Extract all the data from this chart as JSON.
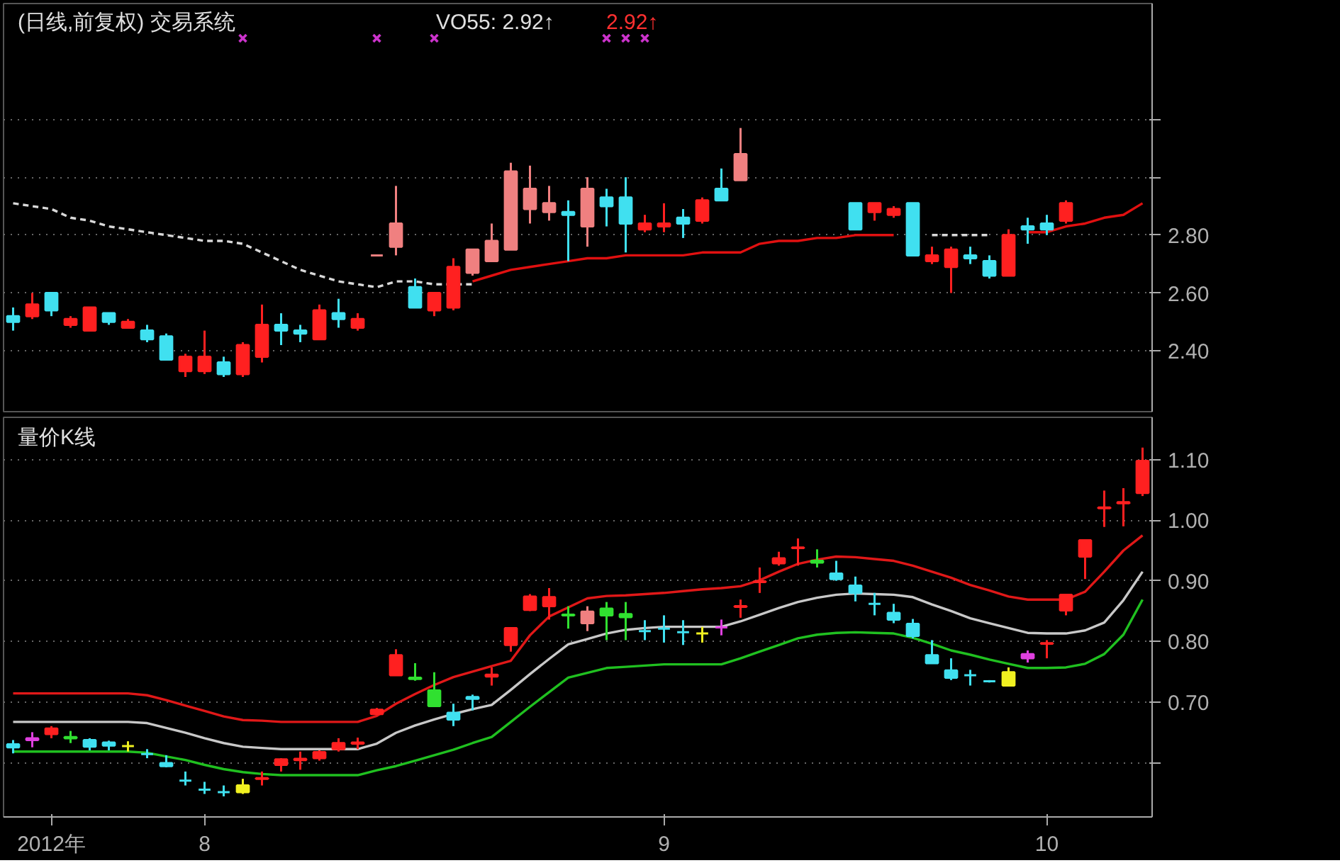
{
  "chart_data": [
    {
      "type": "candlestick",
      "title": "(日线,前复权) 交易系统",
      "annotations": [
        "VO55: 2.92↑",
        "2.92↑"
      ],
      "categories": [
        null,
        null,
        null,
        null,
        null,
        null,
        null,
        null,
        null,
        null,
        null,
        null,
        null,
        null,
        null,
        null,
        null,
        null,
        null,
        null,
        null,
        null,
        null,
        null,
        null,
        null,
        null,
        null,
        null,
        null,
        null,
        null,
        null,
        null,
        null,
        null,
        null,
        null,
        null,
        null,
        null,
        null,
        null,
        null,
        null,
        null,
        null,
        null,
        null,
        null,
        null,
        null,
        null,
        null,
        null,
        null,
        null,
        null,
        null,
        null
      ],
      "ohlc": [
        [
          2.52,
          2.55,
          2.47,
          2.5
        ],
        [
          2.52,
          2.6,
          2.51,
          2.56
        ],
        [
          2.6,
          2.6,
          2.52,
          2.54
        ],
        [
          2.49,
          2.52,
          2.48,
          2.51
        ],
        [
          2.47,
          2.55,
          2.47,
          2.55
        ],
        [
          2.53,
          2.53,
          2.49,
          2.5
        ],
        [
          2.48,
          2.51,
          2.48,
          2.5
        ],
        [
          2.47,
          2.49,
          2.43,
          2.44
        ],
        [
          2.45,
          2.46,
          2.37,
          2.37
        ],
        [
          2.33,
          2.39,
          2.31,
          2.38
        ],
        [
          2.33,
          2.47,
          2.32,
          2.38
        ],
        [
          2.36,
          2.38,
          2.31,
          2.32
        ],
        [
          2.32,
          2.43,
          2.31,
          2.42
        ],
        [
          2.38,
          2.56,
          2.36,
          2.49
        ],
        [
          2.49,
          2.53,
          2.42,
          2.47
        ],
        [
          2.47,
          2.49,
          2.43,
          2.46
        ],
        [
          2.44,
          2.56,
          2.44,
          2.54
        ],
        [
          2.53,
          2.58,
          2.48,
          2.51
        ],
        [
          2.48,
          2.53,
          2.47,
          2.51
        ],
        [
          2.73,
          2.73,
          2.73,
          2.73
        ],
        [
          2.76,
          2.97,
          2.73,
          2.84
        ],
        [
          2.62,
          2.65,
          2.55,
          2.55
        ],
        [
          2.54,
          2.6,
          2.52,
          2.6
        ],
        [
          2.55,
          2.72,
          2.54,
          2.69
        ],
        [
          2.67,
          2.75,
          2.66,
          2.75
        ],
        [
          2.71,
          2.84,
          2.71,
          2.78
        ],
        [
          2.75,
          3.05,
          2.75,
          3.02
        ],
        [
          2.96,
          3.04,
          2.84,
          2.89
        ],
        [
          2.91,
          2.97,
          2.85,
          2.88
        ],
        [
          2.88,
          2.92,
          2.71,
          2.87
        ],
        [
          2.83,
          3.0,
          2.76,
          2.96
        ],
        [
          2.93,
          2.96,
          2.83,
          2.9
        ],
        [
          2.93,
          3.0,
          2.74,
          2.84
        ],
        [
          2.82,
          2.87,
          2.81,
          2.84
        ],
        [
          2.83,
          2.91,
          2.81,
          2.84
        ],
        [
          2.86,
          2.89,
          2.79,
          2.84
        ],
        [
          2.85,
          2.93,
          2.84,
          2.92
        ],
        [
          2.96,
          3.03,
          2.92,
          2.92
        ],
        [
          2.99,
          3.17,
          2.99,
          3.08
        ],
        null,
        null,
        null,
        null,
        null,
        [
          2.91,
          2.91,
          2.82,
          2.82
        ],
        [
          2.88,
          2.91,
          2.85,
          2.91
        ],
        [
          2.87,
          2.9,
          2.86,
          2.89
        ],
        [
          2.91,
          2.91,
          2.73,
          2.73
        ],
        [
          2.71,
          2.76,
          2.7,
          2.73
        ],
        [
          2.69,
          2.76,
          2.6,
          2.75
        ],
        [
          2.73,
          2.76,
          2.7,
          2.72
        ],
        [
          2.71,
          2.73,
          2.65,
          2.66
        ],
        [
          2.66,
          2.82,
          2.66,
          2.8
        ],
        [
          2.83,
          2.86,
          2.77,
          2.82
        ],
        [
          2.84,
          2.87,
          2.8,
          2.82
        ],
        [
          2.85,
          2.92,
          2.84,
          2.91
        ],
        null,
        null,
        null,
        null
      ],
      "colors": [
        "#40e0f0",
        "#ff2020",
        "#40e0f0",
        "#ff2020",
        "#ff2020",
        "#40e0f0",
        "#ff2020",
        "#40e0f0",
        "#40e0f0",
        "#ff2020",
        "#ff2020",
        "#40e0f0",
        "#ff2020",
        "#ff2020",
        "#40e0f0",
        "#40e0f0",
        "#ff2020",
        "#40e0f0",
        "#ff2020",
        "#f08080",
        "#f08080",
        "#40e0f0",
        "#ff2020",
        "#ff2020",
        "#f08080",
        "#f08080",
        "#f08080",
        "#f08080",
        "#f08080",
        "#40e0f0",
        "#f08080",
        "#40e0f0",
        "#40e0f0",
        "#ff2020",
        "#ff2020",
        "#40e0f0",
        "#ff2020",
        "#40e0f0",
        "#f08080",
        null,
        null,
        null,
        null,
        null,
        "#40e0f0",
        "#ff2020",
        "#ff2020",
        "#40e0f0",
        "#ff2020",
        "#ff2020",
        "#40e0f0",
        "#40e0f0",
        "#ff2020",
        "#40e0f0",
        "#40e0f0",
        "#ff2020",
        null,
        null,
        null,
        null
      ],
      "series": [
        {
          "type": "line",
          "color": "#d8d8d8",
          "line_style": "dashed",
          "values": [
            2.91,
            2.9,
            2.89,
            2.86,
            2.85,
            2.83,
            2.82,
            2.81,
            2.8,
            2.79,
            2.78,
            2.78,
            2.77,
            2.74,
            2.71,
            2.68,
            2.66,
            2.64,
            2.63,
            2.62,
            2.64,
            2.64,
            2.63,
            2.63,
            2.63,
            null,
            null,
            null,
            null,
            null,
            null,
            null,
            null,
            null,
            null,
            null,
            null,
            null,
            null,
            null,
            null,
            null,
            null,
            null,
            null,
            null,
            null,
            null,
            2.8,
            2.8,
            2.8,
            2.8,
            null,
            null,
            null,
            null,
            null,
            null,
            null,
            null
          ]
        },
        {
          "type": "line",
          "color": "#e01010",
          "line_style": "solid",
          "values": [
            null,
            null,
            null,
            null,
            null,
            null,
            null,
            null,
            null,
            null,
            null,
            null,
            null,
            null,
            null,
            null,
            null,
            null,
            null,
            null,
            null,
            null,
            null,
            null,
            2.64,
            2.66,
            2.68,
            2.69,
            2.7,
            2.71,
            2.72,
            2.72,
            2.73,
            2.73,
            2.73,
            2.73,
            2.74,
            2.74,
            2.74,
            2.77,
            2.78,
            2.78,
            2.79,
            2.79,
            2.8,
            2.8,
            2.8,
            null,
            null,
            null,
            null,
            null,
            null,
            2.81,
            2.81,
            2.83,
            2.84,
            2.86,
            2.87,
            2.91
          ]
        },
        {
          "type": "scatter",
          "color": "#cc33cc",
          "marker": "cross",
          "values": [
            null,
            null,
            null,
            null,
            null,
            null,
            null,
            null,
            null,
            null,
            null,
            null,
            3.48,
            null,
            null,
            null,
            null,
            null,
            null,
            3.48,
            null,
            null,
            3.48,
            null,
            null,
            null,
            null,
            null,
            null,
            null,
            null,
            3.48,
            3.48,
            3.48,
            null,
            null,
            null,
            null,
            null,
            null,
            null,
            null,
            null,
            null,
            null,
            null,
            null,
            null,
            null,
            null,
            null,
            null,
            null,
            null,
            null,
            null,
            null,
            null,
            null,
            null
          ]
        }
      ],
      "ylim": [
        2.19,
        3.6
      ],
      "yticks": [
        {
          "value": 2.4,
          "label": "2.40"
        },
        {
          "value": 2.6,
          "label": "2.60"
        },
        {
          "value": 2.8,
          "label": "2.80"
        },
        {
          "value": 3.0,
          "label": null
        },
        {
          "value": 3.2,
          "label": null
        }
      ],
      "grid": "y",
      "tick_labels": "y"
    },
    {
      "type": "candlestick",
      "title": "量价K线",
      "categories": [
        null,
        null,
        "2012年",
        null,
        null,
        null,
        null,
        null,
        null,
        null,
        "8",
        null,
        null,
        null,
        null,
        null,
        null,
        null,
        null,
        null,
        null,
        null,
        null,
        null,
        null,
        null,
        null,
        null,
        null,
        null,
        null,
        null,
        null,
        null,
        "9",
        null,
        null,
        null,
        null,
        null,
        null,
        null,
        null,
        null,
        null,
        null,
        null,
        null,
        null,
        null,
        null,
        null,
        null,
        null,
        "10",
        null,
        null,
        null,
        null,
        null
      ],
      "ohlc": [
        [
          0.63,
          0.637,
          0.615,
          0.625
        ],
        [
          0.64,
          0.65,
          0.625,
          0.637
        ],
        [
          0.647,
          0.66,
          0.64,
          0.656
        ],
        [
          0.64,
          0.652,
          0.632,
          0.642
        ],
        [
          0.637,
          0.64,
          0.62,
          0.626
        ],
        [
          0.633,
          0.636,
          0.62,
          0.628
        ],
        [
          0.627,
          0.635,
          0.618,
          0.627
        ],
        [
          0.614,
          0.622,
          0.607,
          0.614
        ],
        [
          0.599,
          0.612,
          0.592,
          0.594
        ],
        [
          0.57,
          0.585,
          0.562,
          0.57
        ],
        [
          0.555,
          0.568,
          0.548,
          0.555
        ],
        [
          0.551,
          0.562,
          0.544,
          0.551
        ],
        [
          0.551,
          0.573,
          0.548,
          0.562
        ],
        [
          0.573,
          0.585,
          0.562,
          0.574
        ],
        [
          0.596,
          0.607,
          0.585,
          0.605
        ],
        [
          0.604,
          0.618,
          0.588,
          0.606
        ],
        [
          0.607,
          0.62,
          0.603,
          0.617
        ],
        [
          0.622,
          0.64,
          0.618,
          0.632
        ],
        [
          0.631,
          0.641,
          0.622,
          0.633
        ],
        [
          0.68,
          0.69,
          0.678,
          0.687
        ],
        [
          0.744,
          0.787,
          0.744,
          0.777
        ],
        [
          0.74,
          0.764,
          0.735,
          0.738
        ],
        [
          0.719,
          0.749,
          0.693,
          0.693
        ],
        [
          0.682,
          0.697,
          0.66,
          0.671
        ],
        [
          0.705,
          0.712,
          0.686,
          0.708
        ],
        [
          0.742,
          0.757,
          0.727,
          0.745
        ],
        [
          0.794,
          0.822,
          0.783,
          0.822
        ],
        [
          0.852,
          0.878,
          0.85,
          0.874
        ],
        [
          0.858,
          0.888,
          0.836,
          0.873
        ],
        [
          0.843,
          0.858,
          0.821,
          0.844
        ],
        [
          0.83,
          0.858,
          0.817,
          0.849
        ],
        [
          0.854,
          0.865,
          0.802,
          0.843
        ],
        [
          0.845,
          0.865,
          0.802,
          0.84
        ],
        [
          0.817,
          0.835,
          0.802,
          0.817
        ],
        [
          0.821,
          0.843,
          0.798,
          0.821
        ],
        [
          0.815,
          0.835,
          0.794,
          0.815
        ],
        [
          0.813,
          0.824,
          0.798,
          0.813
        ],
        [
          0.823,
          0.836,
          0.81,
          0.823
        ],
        [
          0.857,
          0.869,
          0.839,
          0.858
        ],
        [
          0.898,
          0.922,
          0.88,
          0.899
        ],
        [
          0.929,
          0.948,
          0.925,
          0.937
        ],
        [
          0.954,
          0.97,
          0.925,
          0.955
        ],
        [
          0.93,
          0.952,
          0.922,
          0.933
        ],
        [
          0.912,
          0.933,
          0.9,
          0.903
        ],
        [
          0.892,
          0.907,
          0.866,
          0.88
        ],
        [
          0.862,
          0.88,
          0.843,
          0.862
        ],
        [
          0.847,
          0.862,
          0.83,
          0.836
        ],
        [
          0.829,
          0.837,
          0.805,
          0.809
        ],
        [
          0.777,
          0.802,
          0.764,
          0.764
        ],
        [
          0.752,
          0.772,
          0.736,
          0.74
        ],
        [
          0.744,
          0.753,
          0.727,
          0.744
        ],
        [
          0.734,
          0.736,
          0.732,
          0.734
        ],
        [
          0.727,
          0.757,
          0.727,
          0.749
        ],
        [
          0.772,
          0.785,
          0.765,
          0.779
        ],
        [
          0.796,
          0.802,
          0.772,
          0.797
        ],
        [
          0.851,
          0.877,
          0.843,
          0.877
        ],
        [
          0.94,
          0.967,
          0.903,
          0.967
        ],
        [
          1.02,
          1.049,
          0.989,
          1.021
        ],
        [
          1.028,
          1.053,
          0.99,
          1.03
        ],
        [
          1.045,
          1.12,
          1.04,
          1.098
        ]
      ],
      "colors": [
        "#40e0f0",
        "#e040e0",
        "#ff2020",
        "#30e030",
        "#40e0f0",
        "#40e0f0",
        "#f0f020",
        "#40e0f0",
        "#40e0f0",
        "#40e0f0",
        "#40e0f0",
        "#40e0f0",
        "#f0f020",
        "#ff2020",
        "#ff2020",
        "#ff2020",
        "#ff2020",
        "#ff2020",
        "#ff2020",
        "#ff2020",
        "#ff2020",
        "#30e030",
        "#30e030",
        "#40e0f0",
        "#40e0f0",
        "#ff2020",
        "#ff2020",
        "#ff2020",
        "#ff2020",
        "#30e030",
        "#f08080",
        "#30e030",
        "#30e030",
        "#40e0f0",
        "#40e0f0",
        "#40e0f0",
        "#f0f020",
        "#e040e0",
        "#ff2020",
        "#ff2020",
        "#ff2020",
        "#ff2020",
        "#30e030",
        "#40e0f0",
        "#40e0f0",
        "#40e0f0",
        "#40e0f0",
        "#40e0f0",
        "#40e0f0",
        "#40e0f0",
        "#40e0f0",
        "#40e0f0",
        "#f0f020",
        "#e040e0",
        "#ff2020",
        "#ff2020",
        "#ff2020",
        "#ff2020",
        "#ff2020",
        "#ff2020"
      ],
      "series": [
        {
          "type": "line",
          "color": "#e01818",
          "line_style": "solid",
          "values": [
            0.714,
            0.714,
            0.714,
            0.714,
            0.714,
            0.714,
            0.714,
            0.711,
            0.703,
            0.694,
            0.685,
            0.676,
            0.67,
            0.669,
            0.667,
            0.667,
            0.667,
            0.667,
            0.667,
            0.677,
            0.697,
            0.713,
            0.728,
            0.741,
            0.75,
            0.759,
            0.768,
            0.81,
            0.841,
            0.856,
            0.871,
            0.875,
            0.876,
            0.878,
            0.88,
            0.883,
            0.886,
            0.888,
            0.891,
            0.901,
            0.915,
            0.928,
            0.935,
            0.94,
            0.939,
            0.936,
            0.933,
            0.925,
            0.915,
            0.905,
            0.893,
            0.884,
            0.874,
            0.869,
            0.869,
            0.869,
            0.882,
            0.915,
            0.95,
            0.975
          ]
        },
        {
          "type": "line",
          "color": "#c8c8c8",
          "line_style": "solid",
          "values": [
            0.667,
            0.667,
            0.667,
            0.667,
            0.667,
            0.667,
            0.667,
            0.665,
            0.657,
            0.649,
            0.64,
            0.632,
            0.626,
            0.624,
            0.622,
            0.622,
            0.622,
            0.622,
            0.622,
            0.631,
            0.649,
            0.661,
            0.671,
            0.68,
            0.688,
            0.695,
            0.72,
            0.746,
            0.771,
            0.795,
            0.804,
            0.813,
            0.819,
            0.822,
            0.824,
            0.824,
            0.824,
            0.824,
            0.833,
            0.844,
            0.855,
            0.865,
            0.872,
            0.877,
            0.879,
            0.878,
            0.877,
            0.873,
            0.861,
            0.85,
            0.838,
            0.83,
            0.822,
            0.814,
            0.813,
            0.813,
            0.818,
            0.831,
            0.868,
            0.915
          ]
        },
        {
          "type": "line",
          "color": "#20c020",
          "line_style": "solid",
          "values": [
            0.618,
            0.618,
            0.618,
            0.618,
            0.618,
            0.618,
            0.618,
            0.616,
            0.61,
            0.604,
            0.596,
            0.589,
            0.584,
            0.581,
            0.579,
            0.579,
            0.579,
            0.579,
            0.579,
            0.587,
            0.594,
            0.603,
            0.612,
            0.621,
            0.632,
            0.642,
            0.667,
            0.692,
            0.716,
            0.74,
            0.748,
            0.756,
            0.758,
            0.76,
            0.762,
            0.762,
            0.762,
            0.762,
            0.772,
            0.783,
            0.794,
            0.805,
            0.811,
            0.814,
            0.815,
            0.814,
            0.813,
            0.806,
            0.796,
            0.785,
            0.778,
            0.77,
            0.763,
            0.756,
            0.756,
            0.757,
            0.763,
            0.779,
            0.811,
            0.869
          ]
        }
      ],
      "ylim": [
        0.51,
        1.17
      ],
      "yticks": [
        {
          "value": 0.6,
          "label": null
        },
        {
          "value": 0.7,
          "label": "0.70"
        },
        {
          "value": 0.8,
          "label": "0.80"
        },
        {
          "value": 0.9,
          "label": "0.90"
        },
        {
          "value": 1.0,
          "label": "1.00"
        },
        {
          "value": 1.1,
          "label": "1.10"
        }
      ],
      "grid": "y"
    }
  ]
}
